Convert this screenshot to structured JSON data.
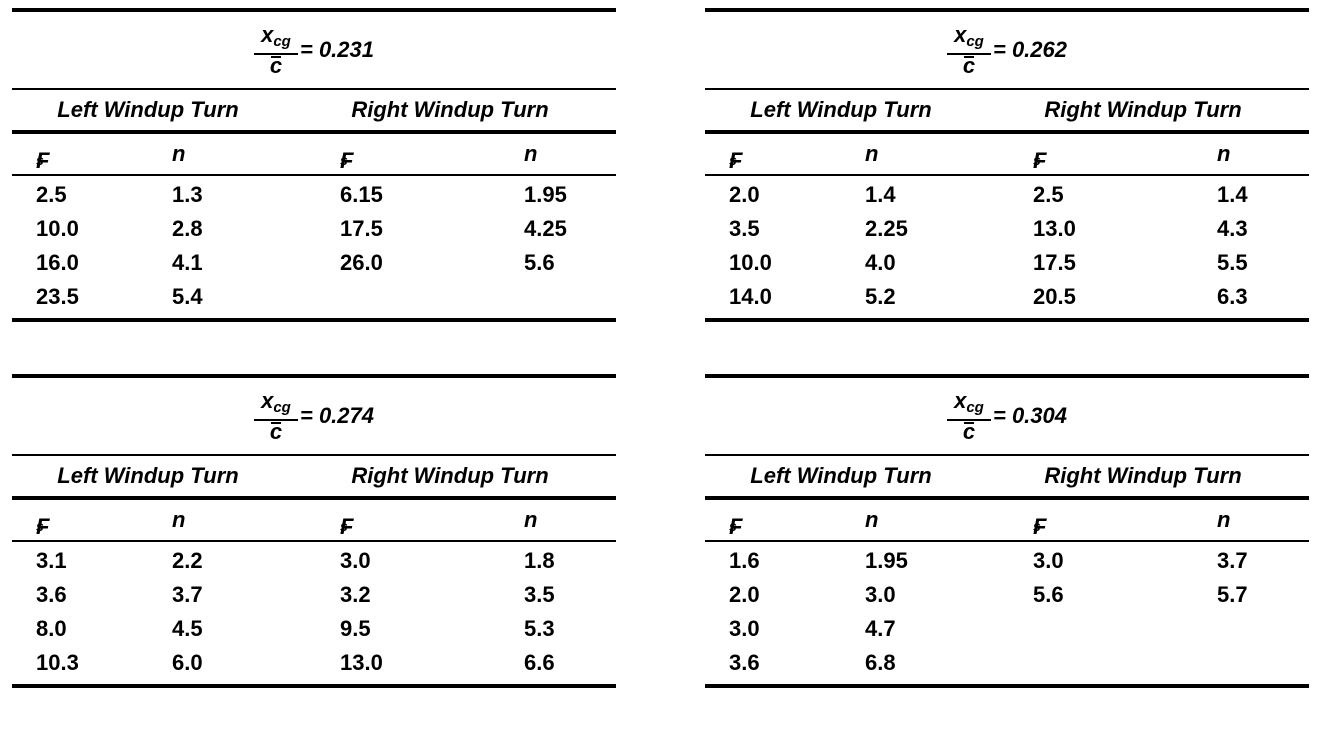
{
  "tables": [
    {
      "xcg_label": "x",
      "xcg_sub": "cg",
      "cbar_label": "c",
      "value_text": "= 0.231",
      "left_group": "Left Windup Turn",
      "right_group": "Right Windup Turn",
      "col_fs": "F",
      "col_fs_sub": "s",
      "col_n": "n",
      "rows": [
        [
          "2.5",
          "1.3",
          "6.15",
          "1.95"
        ],
        [
          "10.0",
          "2.8",
          "17.5",
          "4.25"
        ],
        [
          "16.0",
          "4.1",
          "26.0",
          "5.6"
        ],
        [
          "23.5",
          "5.4",
          "",
          ""
        ]
      ]
    },
    {
      "xcg_label": "x",
      "xcg_sub": "cg",
      "cbar_label": "c",
      "value_text": "= 0.262",
      "left_group": "Left Windup Turn",
      "right_group": "Right Windup Turn",
      "col_fs": "F",
      "col_fs_sub": "s",
      "col_n": "n",
      "rows": [
        [
          "2.0",
          "1.4",
          "2.5",
          "1.4"
        ],
        [
          "3.5",
          "2.25",
          "13.0",
          "4.3"
        ],
        [
          "10.0",
          "4.0",
          "17.5",
          "5.5"
        ],
        [
          "14.0",
          "5.2",
          "20.5",
          "6.3"
        ]
      ]
    },
    {
      "xcg_label": "x",
      "xcg_sub": "cg",
      "cbar_label": "c",
      "value_text": "= 0.274",
      "left_group": "Left Windup Turn",
      "right_group": "Right Windup Turn",
      "col_fs": "F",
      "col_fs_sub": "s",
      "col_n": "n",
      "rows": [
        [
          "3.1",
          "2.2",
          "3.0",
          "1.8"
        ],
        [
          "3.6",
          "3.7",
          "3.2",
          "3.5"
        ],
        [
          "8.0",
          "4.5",
          "9.5",
          "5.3"
        ],
        [
          "10.3",
          "6.0",
          "13.0",
          "6.6"
        ]
      ]
    },
    {
      "xcg_label": "x",
      "xcg_sub": "cg",
      "cbar_label": "c",
      "value_text": "= 0.304",
      "left_group": "Left Windup Turn",
      "right_group": "Right Windup Turn",
      "col_fs": "F",
      "col_fs_sub": "s",
      "col_n": "n",
      "rows": [
        [
          "1.6",
          "1.95",
          "3.0",
          "3.7"
        ],
        [
          "2.0",
          "3.0",
          "5.6",
          "5.7"
        ],
        [
          "3.0",
          "4.7",
          "",
          ""
        ],
        [
          "3.6",
          "6.8",
          "",
          ""
        ]
      ]
    }
  ]
}
